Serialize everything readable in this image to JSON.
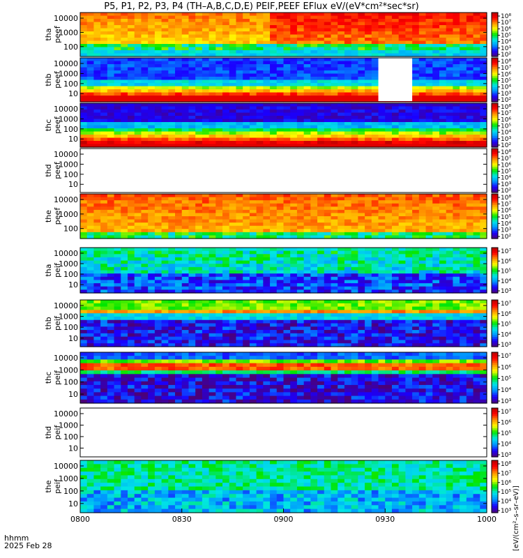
{
  "title": "P5, P1, P2, P3, P4 (TH–A,B,C,D,E) PEIF,PEEF EFlux eV/(eV*cm²*sec*sr)",
  "footer": {
    "time_label": "hhmm",
    "date_label": "2025 Feb 28"
  },
  "colorbar_unit": "[eV/(cm²–s–sr–eV)]",
  "chart_data": {
    "type": "heatmap",
    "x_ticks": [
      "0800",
      "0830",
      "0900",
      "0930",
      "1000"
    ],
    "x_range": [
      "08:00",
      "10:00"
    ],
    "y_scale": "log",
    "panels": [
      {
        "name_line1": "tha",
        "name_line2": "peef",
        "y_ticks": [
          "10000",
          "1000",
          "100"
        ],
        "cb_ticks": [
          "10⁸",
          "10⁷",
          "10⁶",
          "10⁵",
          "10⁴",
          "10³",
          "10²"
        ],
        "pattern": "hot"
      },
      {
        "name_line1": "thb",
        "name_line2": "peef",
        "y_ticks": [
          "10000",
          "1000",
          "100",
          "10"
        ],
        "cb_ticks": [
          "10⁸",
          "10⁷",
          "10⁶",
          "10⁵",
          "10⁴",
          "10³",
          "10²"
        ],
        "pattern": "band",
        "gap": [
          "09:28",
          "09:38"
        ]
      },
      {
        "name_line1": "thc",
        "name_line2": "peef",
        "y_ticks": [
          "10000",
          "1000",
          "100",
          "10"
        ],
        "cb_ticks": [
          "10⁸",
          "10⁷",
          "10⁶",
          "10⁵",
          "10⁴",
          "10³",
          "10²"
        ],
        "pattern": "bandlow"
      },
      {
        "name_line1": "thd",
        "name_line2": "peef",
        "y_ticks": [
          "10000",
          "1000",
          "100",
          "10"
        ],
        "cb_ticks": [
          "10⁸",
          "10⁷",
          "10⁶",
          "10⁵",
          "10⁴",
          "10³",
          "10²"
        ],
        "pattern": "empty"
      },
      {
        "name_line1": "the",
        "name_line2": "peef",
        "y_ticks": [
          "10000",
          "1000",
          "100"
        ],
        "cb_ticks": [
          "10⁸",
          "10⁷",
          "10⁶",
          "10⁵",
          "10⁴",
          "10³",
          "10²"
        ],
        "pattern": "hot2"
      },
      {
        "name_line1": "tha",
        "name_line2": "peif",
        "y_ticks": [
          "10000",
          "1000",
          "100",
          "10"
        ],
        "cb_ticks": [
          "10⁷",
          "10⁶",
          "10⁵",
          "10⁴",
          "10³"
        ],
        "pattern": "ion"
      },
      {
        "name_line1": "thb",
        "name_line2": "peif",
        "y_ticks": [
          "10000",
          "1000",
          "100",
          "10"
        ],
        "cb_ticks": [
          "10⁷",
          "10⁶",
          "10⁵",
          "10⁴",
          "10³"
        ],
        "pattern": "ionb"
      },
      {
        "name_line1": "thc",
        "name_line2": "peif",
        "y_ticks": [
          "10000",
          "1000",
          "100",
          "10"
        ],
        "cb_ticks": [
          "10⁷",
          "10⁶",
          "10⁵",
          "10⁴",
          "10³"
        ],
        "pattern": "ionc"
      },
      {
        "name_line1": "thd",
        "name_line2": "peif",
        "y_ticks": [
          "10000",
          "1000",
          "100",
          "10"
        ],
        "cb_ticks": [
          "10⁷",
          "10⁶",
          "10⁵",
          "10⁴",
          "10³"
        ],
        "pattern": "empty"
      },
      {
        "name_line1": "the",
        "name_line2": "peif",
        "y_ticks": [
          "10000",
          "1000",
          "100",
          "10"
        ],
        "cb_ticks": [
          "10⁸",
          "10⁷",
          "10⁶",
          "10⁵",
          "10⁴",
          "10³"
        ],
        "pattern": "ione"
      }
    ],
    "colorbar_colors": [
      "#4b0079",
      "#1a00ff",
      "#0096ff",
      "#00e6e6",
      "#00e600",
      "#ffff00",
      "#ff9600",
      "#ff0000",
      "#b40000"
    ]
  }
}
